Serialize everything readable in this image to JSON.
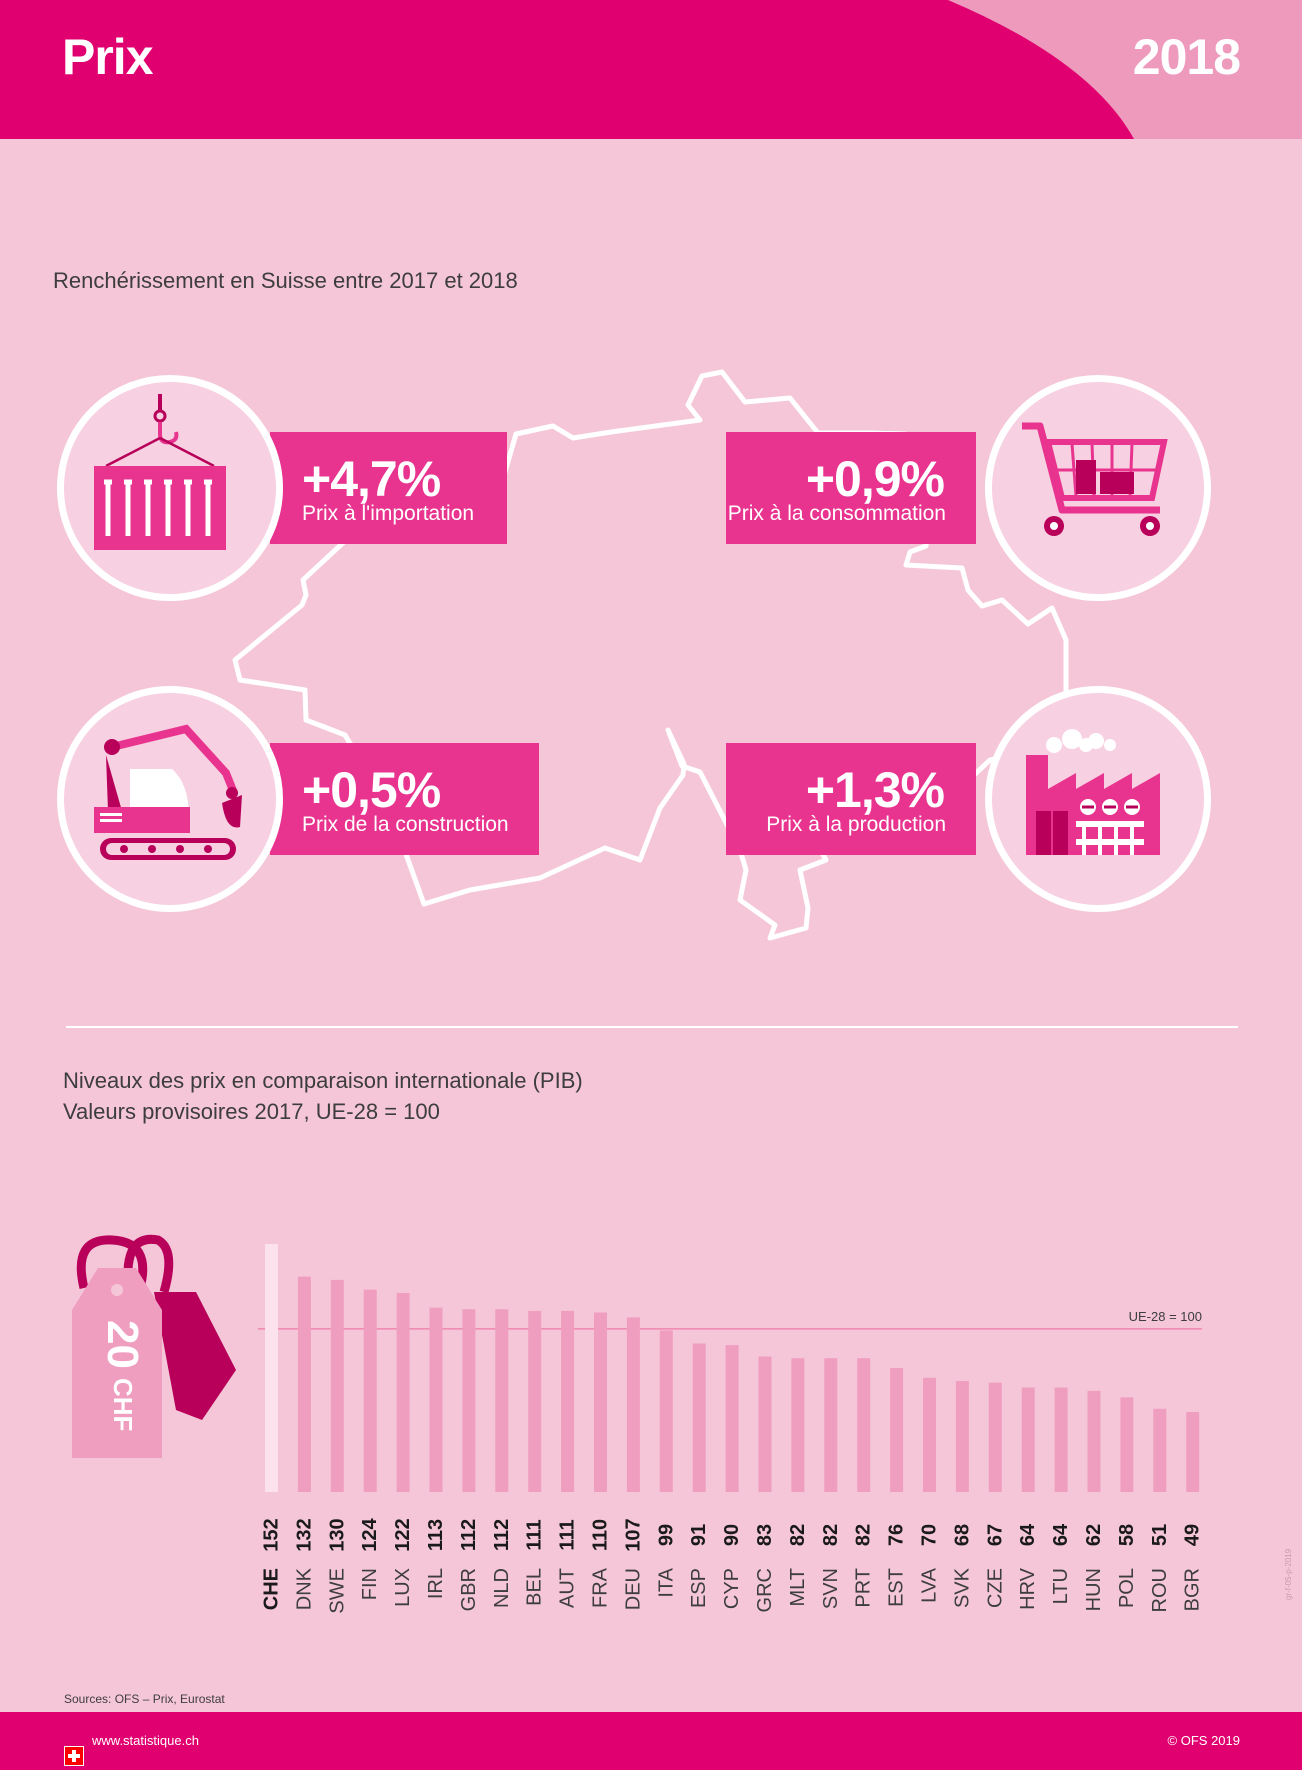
{
  "header": {
    "title": "Prix",
    "year": "2018"
  },
  "section1": {
    "title": "Renchérissement en Suisse entre 2017 et 2018",
    "stats": [
      {
        "value": "+4,7%",
        "label": "Prix à l'importation",
        "icon": "container-icon"
      },
      {
        "value": "+0,9%",
        "label": "Prix à la consommation",
        "icon": "shopping-cart-icon"
      },
      {
        "value": "+0,5%",
        "label": "Prix de la construction",
        "icon": "excavator-icon"
      },
      {
        "value": "+1,3%",
        "label": "Prix à la production",
        "icon": "factory-icon"
      }
    ]
  },
  "section2": {
    "title_line1": "Niveaux des prix en comparaison internationale (PIB)",
    "title_line2": "Valeurs provisoires 2017, UE-28 = 100"
  },
  "price_tag": {
    "amount": "20",
    "currency": "CHF"
  },
  "chart_data": {
    "type": "bar",
    "categories": [
      "CHE",
      "DNK",
      "SWE",
      "FIN",
      "LUX",
      "IRL",
      "GBR",
      "NLD",
      "BEL",
      "AUT",
      "FRA",
      "DEU",
      "ITA",
      "ESP",
      "CYP",
      "GRC",
      "MLT",
      "SVN",
      "PRT",
      "EST",
      "LVA",
      "SVK",
      "CZE",
      "HRV",
      "LTU",
      "HUN",
      "POL",
      "ROU",
      "BGR"
    ],
    "values": [
      152,
      132,
      130,
      124,
      122,
      113,
      112,
      112,
      111,
      111,
      110,
      107,
      99,
      91,
      90,
      83,
      82,
      82,
      82,
      76,
      70,
      68,
      67,
      64,
      64,
      62,
      58,
      51,
      49
    ],
    "highlight": "CHE",
    "reference_line": {
      "value": 100,
      "label": "UE-28 = 100"
    },
    "ylim": [
      0,
      152
    ],
    "colors": {
      "bar": "#ef9ebf",
      "highlight": "#fbe2ec",
      "reference": "#ee7aa8"
    }
  },
  "sources": "Sources: OFS – Prix, Eurostat",
  "side_note": "gr-f-05-p-2019",
  "footer": {
    "url": "www.statistique.ch",
    "copyright": "© OFS 2019"
  },
  "colors": {
    "magenta": "#e0006f",
    "pink": "#e8338f",
    "background": "#f5c6d7"
  }
}
